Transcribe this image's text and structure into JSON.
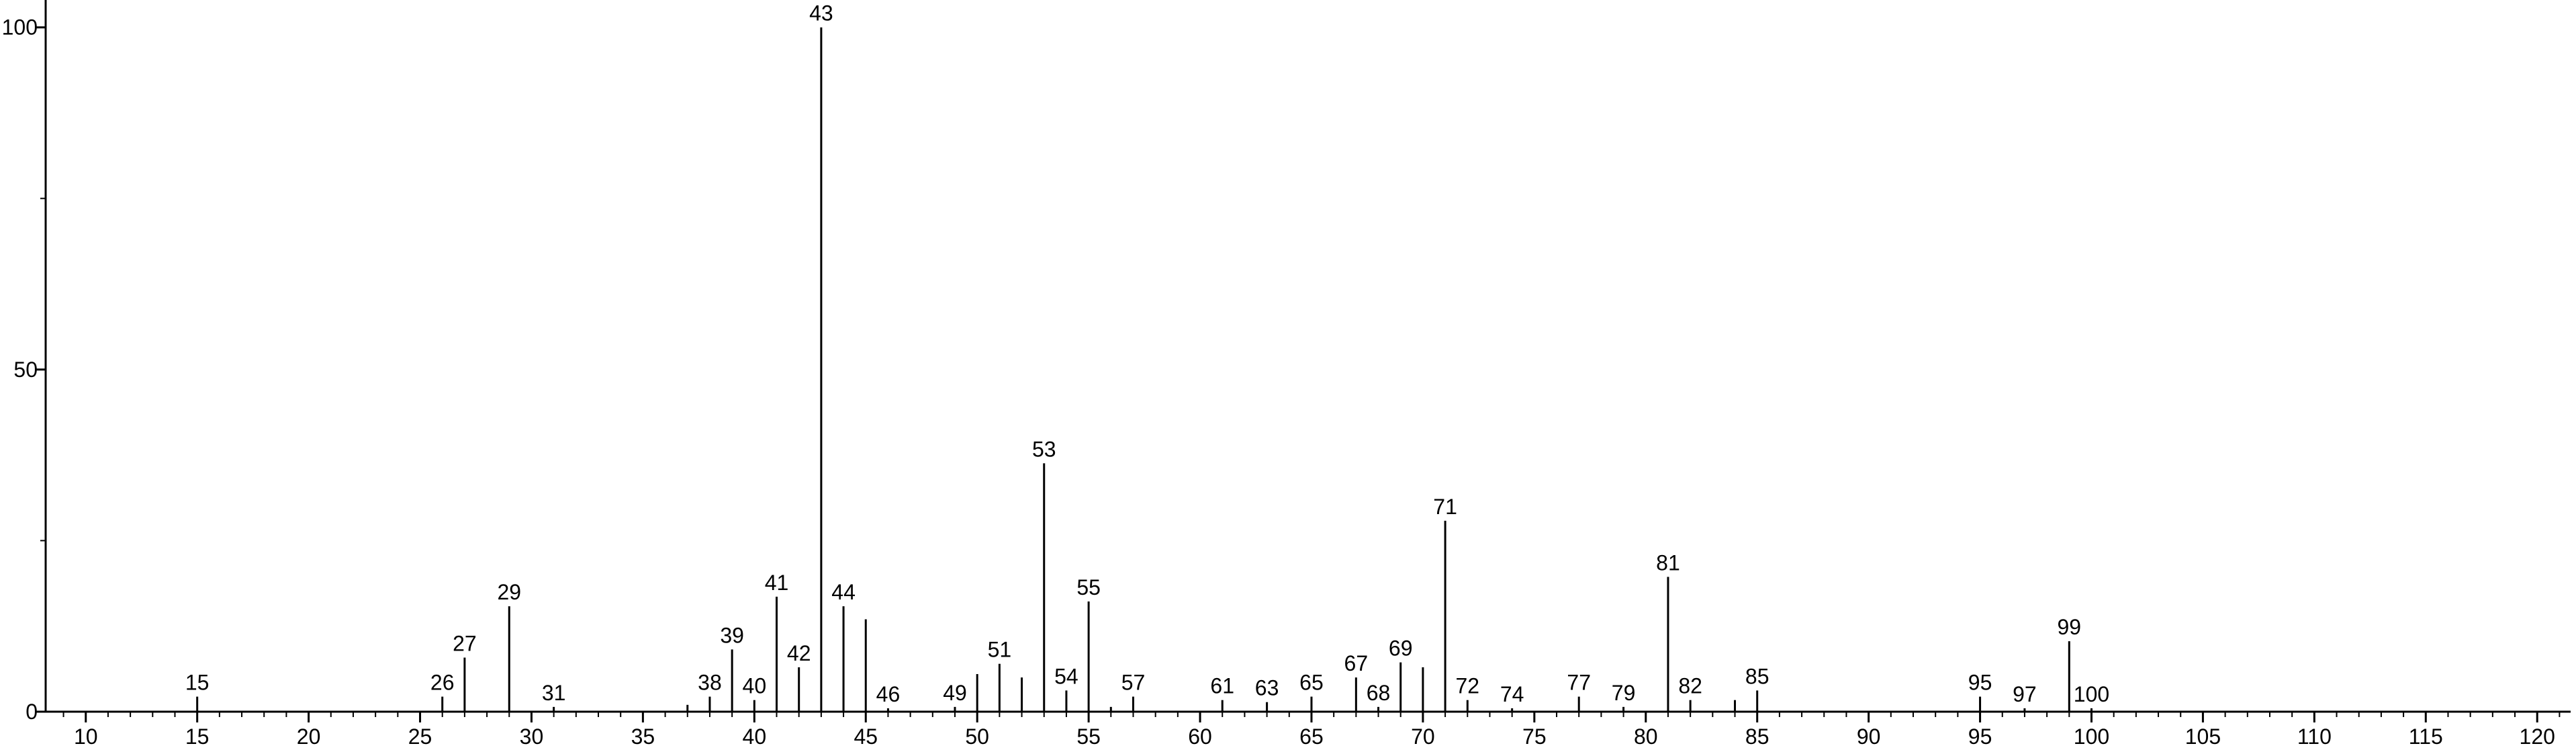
{
  "chart_data": {
    "type": "stem",
    "series": [
      {
        "color": "#000000",
        "labels": true,
        "x": [
          15,
          26,
          27,
          29,
          31,
          38,
          39,
          40,
          41,
          42,
          43,
          44,
          46,
          49,
          51,
          53,
          54,
          55,
          57,
          61,
          63,
          65,
          67,
          68,
          69,
          71,
          72,
          74,
          77,
          79,
          81,
          82,
          85,
          95,
          97,
          99,
          100
        ],
        "values": [
          2.2,
          2.2,
          7.9,
          15.4,
          0.7,
          2.2,
          9.1,
          1.7,
          16.8,
          6.5,
          100,
          15.4,
          0.5,
          0.7,
          7.0,
          36.3,
          3.1,
          16.1,
          2.2,
          1.7,
          1.4,
          2.2,
          5.0,
          0.7,
          7.2,
          27.9,
          1.7,
          0.5,
          2.2,
          0.7,
          19.7,
          1.7,
          3.1,
          2.2,
          0.5,
          10.3,
          0.5
        ]
      },
      {
        "color": "#000000",
        "labels": false,
        "x": [
          37,
          45,
          50,
          52,
          56,
          70,
          84
        ],
        "values": [
          1.0,
          13.5,
          5.5,
          5.0,
          0.7,
          6.5,
          1.7
        ]
      }
    ],
    "xlim": [
      8.2,
      121.5
    ],
    "xticks": [
      10,
      15,
      20,
      25,
      30,
      35,
      40,
      45,
      50,
      55,
      60,
      65,
      70,
      75,
      80,
      85,
      90,
      95,
      100,
      105,
      110,
      115,
      120
    ],
    "xminor_step": 1,
    "ylim": [
      0,
      104
    ],
    "yticks": [
      0,
      50,
      100
    ],
    "yminor_ticks": [
      25,
      75
    ]
  }
}
